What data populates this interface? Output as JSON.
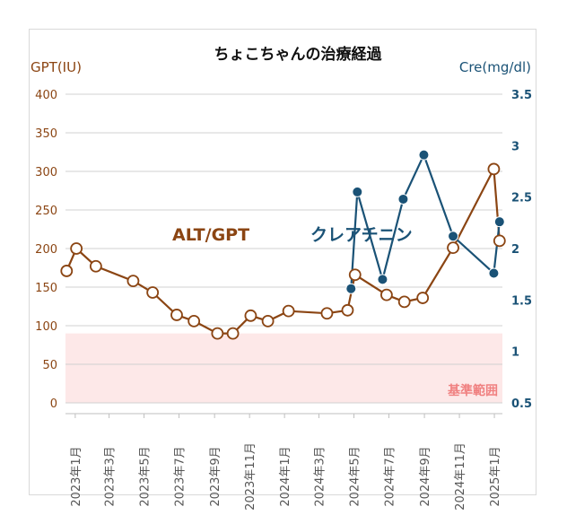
{
  "chart_data": {
    "type": "line",
    "title": "ちょこちゃんの治療経過",
    "y_left_label": "GPT(IU)",
    "y_right_label": "Cre(mg/dl)",
    "x_ticks": [
      "2023年1月",
      "2023年3月",
      "2023年5月",
      "2023年7月",
      "2023年9月",
      "2023年11月",
      "2024年1月",
      "2024年3月",
      "2024年5月",
      "2024年7月",
      "2024年9月",
      "2024年11月",
      "2025年1月"
    ],
    "y_left_ticks": [
      0,
      50,
      100,
      150,
      200,
      250,
      300,
      350,
      400
    ],
    "y_right_ticks": [
      0.5,
      1,
      1.5,
      2,
      2.5,
      3,
      3.5
    ],
    "ylim_left": [
      0,
      400
    ],
    "ylim_right": [
      0.5,
      3.5
    ],
    "xlim": [
      "2022-12-15",
      "2025-01-15"
    ],
    "grid": true,
    "reference_band": {
      "label": "基準範囲",
      "y_from": 0,
      "y_to": 90,
      "color": "#fde8e8",
      "label_color": "#f08080"
    },
    "series": [
      {
        "name": "ALT/GPT",
        "axis": "left",
        "color": "#8b4513",
        "marker": "open-circle",
        "points": [
          [
            "2022-12-17",
            171
          ],
          [
            "2023-01-03",
            200
          ],
          [
            "2023-02-06",
            177
          ],
          [
            "2023-04-12",
            158
          ],
          [
            "2023-05-16",
            143
          ],
          [
            "2023-06-27",
            114
          ],
          [
            "2023-07-27",
            106
          ],
          [
            "2023-09-06",
            90
          ],
          [
            "2023-10-03",
            90
          ],
          [
            "2023-11-03",
            113
          ],
          [
            "2023-12-03",
            106
          ],
          [
            "2024-01-08",
            119
          ],
          [
            "2024-03-15",
            116
          ],
          [
            "2024-04-20",
            120
          ],
          [
            "2024-05-03",
            166
          ],
          [
            "2024-06-27",
            140
          ],
          [
            "2024-07-28",
            131
          ],
          [
            "2024-08-29",
            136
          ],
          [
            "2024-10-21",
            201
          ],
          [
            "2024-12-31",
            303
          ],
          [
            "2025-01-10",
            210
          ]
        ]
      },
      {
        "name": "クレアチニン",
        "axis": "right",
        "color": "#1a5276",
        "marker": "filled-circle",
        "points": [
          [
            "2024-04-26",
            1.61
          ],
          [
            "2024-05-07",
            2.55
          ],
          [
            "2024-06-20",
            1.7
          ],
          [
            "2024-07-26",
            2.48
          ],
          [
            "2024-08-31",
            2.91
          ],
          [
            "2024-10-21",
            2.12
          ],
          [
            "2024-12-31",
            1.76
          ],
          [
            "2025-01-10",
            2.26
          ]
        ]
      }
    ],
    "series_labels": [
      {
        "text": "ALT/GPT",
        "color": "#8b4513"
      },
      {
        "text": "クレアチニン",
        "color": "#1a5276"
      }
    ]
  }
}
